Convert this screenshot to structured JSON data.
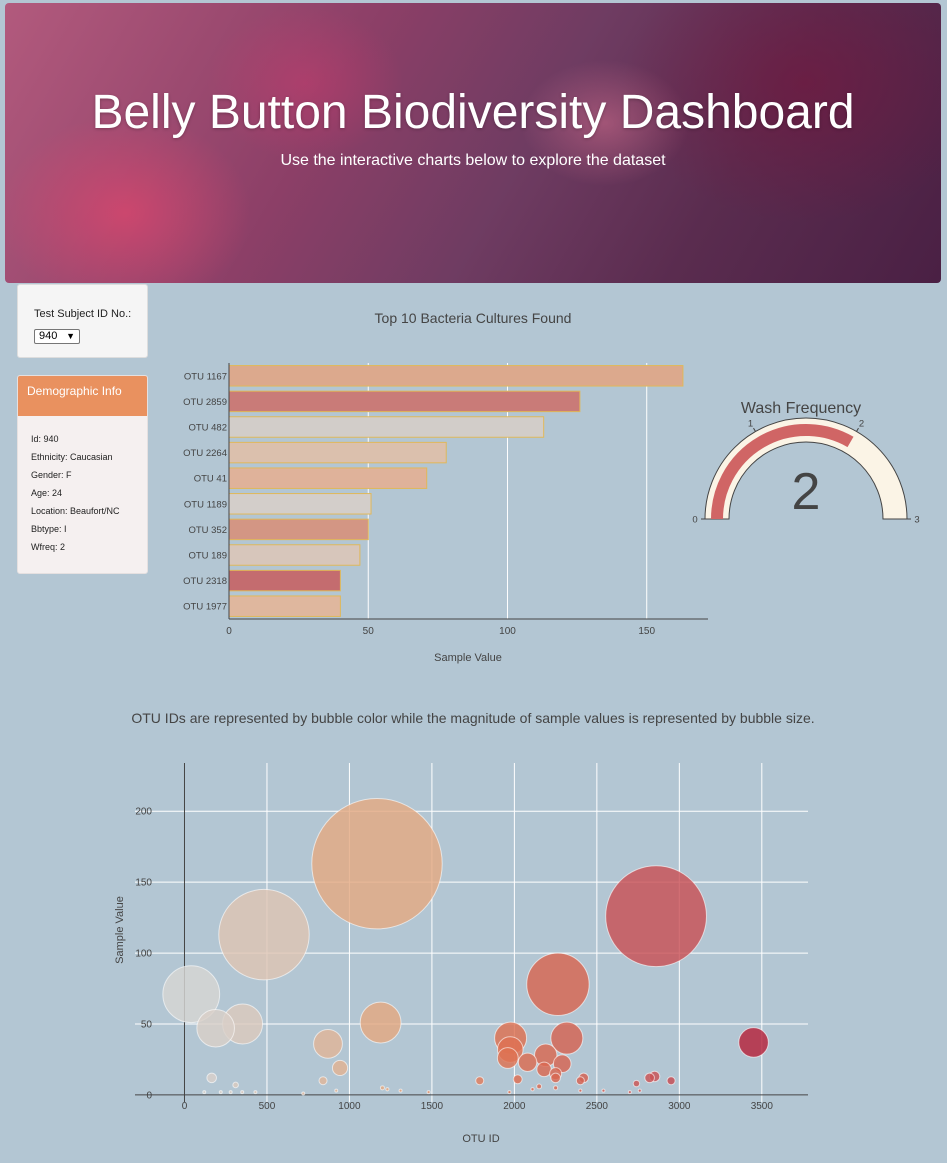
{
  "header": {
    "title": "Belly Button Biodiversity Dashboard",
    "subtitle": "Use the interactive charts below to explore the dataset"
  },
  "selector": {
    "label": "Test Subject ID No.:",
    "selected": "940"
  },
  "demographics": {
    "title": "Demographic Info",
    "lines": [
      "Id: 940",
      "Ethnicity: Caucasian",
      "Gender: F",
      "Age: 24",
      "Location: Beaufort/NC",
      "Bbtype: I",
      "Wfreq: 2"
    ]
  },
  "chart_data": [
    {
      "type": "bar",
      "orientation": "horizontal",
      "title": "Top 10 Bacteria Cultures Found",
      "xlabel": "Sample Value",
      "ylabel": "",
      "xlim": [
        0,
        172
      ],
      "xticks": [
        0,
        50,
        100,
        150
      ],
      "categories": [
        "OTU 1167",
        "OTU 2859",
        "OTU 482",
        "OTU 2264",
        "OTU 41",
        "OTU 1189",
        "OTU 352",
        "OTU 189",
        "OTU 2318",
        "OTU 1977"
      ],
      "values": [
        163,
        126,
        113,
        78,
        71,
        51,
        50,
        47,
        40,
        40
      ],
      "colors": [
        "#dca98d",
        "#c97b78",
        "#d2cdc9",
        "#dbc0ad",
        "#dfb29a",
        "#d3ceca",
        "#d39684",
        "#d7c6bb",
        "#c46c6f",
        "#dfb79e"
      ],
      "bar_stroke": "#e0b85a"
    },
    {
      "type": "gauge",
      "title": "Wash Frequency",
      "value": 2,
      "range": [
        0,
        3
      ],
      "ticks": [
        0,
        1,
        2,
        3
      ],
      "bar_color": "#d06565",
      "bg_color": "#fbf4e6"
    },
    {
      "type": "scatter",
      "subtype": "bubble",
      "title": "OTU IDs are represented by bubble color while the magnitude of sample values is represented by bubble size.",
      "xlabel": "OTU ID",
      "ylabel": "Sample Value",
      "xlim": [
        -300,
        3780
      ],
      "ylim": [
        -5,
        234
      ],
      "xticks": [
        0,
        500,
        1000,
        1500,
        2000,
        2500,
        3000,
        3500
      ],
      "yticks": [
        0,
        50,
        100,
        150,
        200
      ],
      "points": [
        {
          "x": 41,
          "y": 71
        },
        {
          "x": 189,
          "y": 47
        },
        {
          "x": 352,
          "y": 50
        },
        {
          "x": 482,
          "y": 113
        },
        {
          "x": 1167,
          "y": 163
        },
        {
          "x": 1189,
          "y": 51
        },
        {
          "x": 870,
          "y": 36
        },
        {
          "x": 943,
          "y": 19
        },
        {
          "x": 1977,
          "y": 40
        },
        {
          "x": 2318,
          "y": 40
        },
        {
          "x": 2264,
          "y": 78
        },
        {
          "x": 2859,
          "y": 126
        },
        {
          "x": 3450,
          "y": 37
        },
        {
          "x": 1960,
          "y": 26
        },
        {
          "x": 1975,
          "y": 32
        },
        {
          "x": 2080,
          "y": 23
        },
        {
          "x": 2190,
          "y": 28
        },
        {
          "x": 2290,
          "y": 22
        },
        {
          "x": 2180,
          "y": 18
        },
        {
          "x": 2250,
          "y": 15
        },
        {
          "x": 2250,
          "y": 12
        },
        {
          "x": 2020,
          "y": 11
        },
        {
          "x": 2420,
          "y": 12
        },
        {
          "x": 2400,
          "y": 10
        },
        {
          "x": 2850,
          "y": 13
        },
        {
          "x": 2820,
          "y": 12
        },
        {
          "x": 2950,
          "y": 10
        },
        {
          "x": 2740,
          "y": 8
        },
        {
          "x": 1790,
          "y": 10
        },
        {
          "x": 840,
          "y": 10
        },
        {
          "x": 165,
          "y": 12
        },
        {
          "x": 310,
          "y": 7
        },
        {
          "x": 2150,
          "y": 6
        },
        {
          "x": 2110,
          "y": 4
        },
        {
          "x": 2250,
          "y": 5
        },
        {
          "x": 1200,
          "y": 5
        },
        {
          "x": 1230,
          "y": 4
        },
        {
          "x": 1310,
          "y": 3
        },
        {
          "x": 920,
          "y": 3
        },
        {
          "x": 120,
          "y": 2
        },
        {
          "x": 220,
          "y": 2
        },
        {
          "x": 280,
          "y": 2
        },
        {
          "x": 350,
          "y": 2
        },
        {
          "x": 430,
          "y": 2
        },
        {
          "x": 1480,
          "y": 2
        },
        {
          "x": 2400,
          "y": 3
        },
        {
          "x": 2540,
          "y": 3
        },
        {
          "x": 2760,
          "y": 3
        },
        {
          "x": 2700,
          "y": 2
        },
        {
          "x": 720,
          "y": 1
        },
        {
          "x": 1970,
          "y": 2
        }
      ]
    }
  ]
}
